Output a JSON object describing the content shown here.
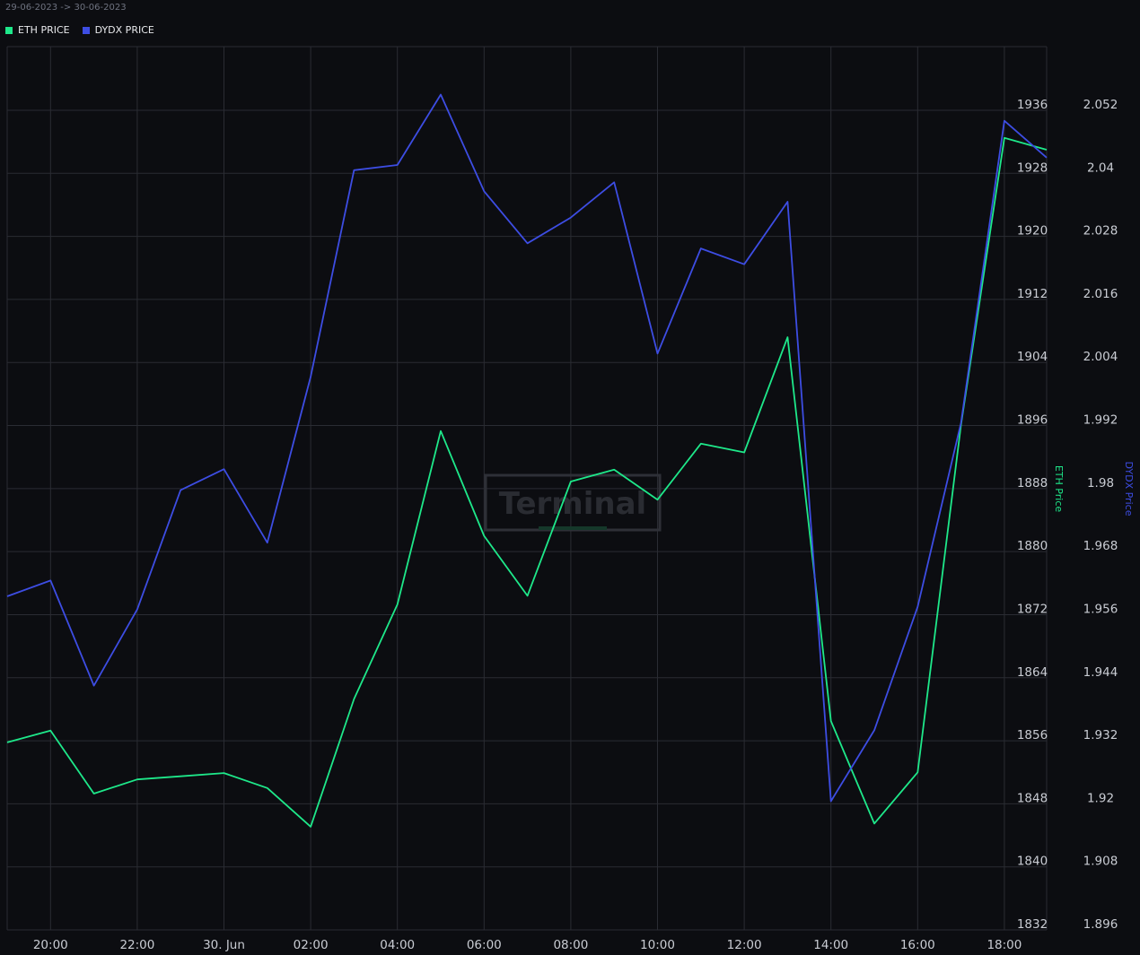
{
  "header": {
    "date_range": "29-06-2023 -> 30-06-2023"
  },
  "legend": [
    {
      "label": "ETH PRICE",
      "color": "#1ee88a"
    },
    {
      "label": "DYDX PRICE",
      "color": "#3d4de3"
    }
  ],
  "watermark": {
    "text": "Terminal"
  },
  "chart_data": {
    "type": "line",
    "x": [
      "19:00",
      "20:00",
      "21:00",
      "22:00",
      "23:00",
      "30. Jun",
      "01:00",
      "02:00",
      "03:00",
      "04:00",
      "05:00",
      "06:00",
      "07:00",
      "08:00",
      "09:00",
      "10:00",
      "11:00",
      "12:00",
      "13:00",
      "14:00",
      "15:00",
      "16:00",
      "17:00",
      "18:00",
      "18:30"
    ],
    "x_tick_labels": [
      "20:00",
      "22:00",
      "30. Jun",
      "02:00",
      "04:00",
      "06:00",
      "08:00",
      "10:00",
      "12:00",
      "14:00",
      "16:00",
      "18:00"
    ],
    "series": [
      {
        "name": "ETH PRICE",
        "axis": "left",
        "color": "#1ee88a",
        "values": [
          1855,
          1856.5,
          1848.5,
          1850.3,
          1850.7,
          1851.1,
          1849.2,
          1844.3,
          1860.5,
          1872.5,
          1894.5,
          1881.2,
          1873.6,
          1888.1,
          1889.6,
          1885.8,
          1892.9,
          1891.8,
          1906.4,
          1857.7,
          1844.7,
          1851.2,
          1895.3,
          1931.7,
          1930.2
        ]
      },
      {
        "name": "DYDX PRICE",
        "axis": "right",
        "color": "#3d4de3",
        "values": [
          1.9583,
          1.9613,
          1.9413,
          1.9558,
          1.9785,
          1.9825,
          1.9685,
          2.0001,
          2.0394,
          2.0404,
          2.0538,
          2.0354,
          2.0255,
          2.0304,
          2.0371,
          2.0045,
          2.0245,
          2.0215,
          2.0334,
          1.9193,
          1.9328,
          1.9563,
          1.9913,
          2.0488,
          2.0418
        ]
      }
    ],
    "y_left": {
      "label": "ETH Price",
      "ticks": [
        "1832",
        "1840",
        "1848",
        "1856",
        "1864",
        "1872",
        "1880",
        "1888",
        "1896",
        "1904",
        "1912",
        "1920",
        "1928",
        "1936"
      ],
      "range": [
        1832,
        1936
      ]
    },
    "y_right": {
      "label": "DYDX Price",
      "ticks": [
        "1.896",
        "1.908",
        "1.92",
        "1.932",
        "1.944",
        "1.956",
        "1.968",
        "1.98",
        "1.992",
        "2.004",
        "2.016",
        "2.028",
        "2.04",
        "2.052"
      ],
      "range": [
        1.896,
        2.052
      ]
    },
    "grid": true,
    "legend_position": "top-left"
  }
}
